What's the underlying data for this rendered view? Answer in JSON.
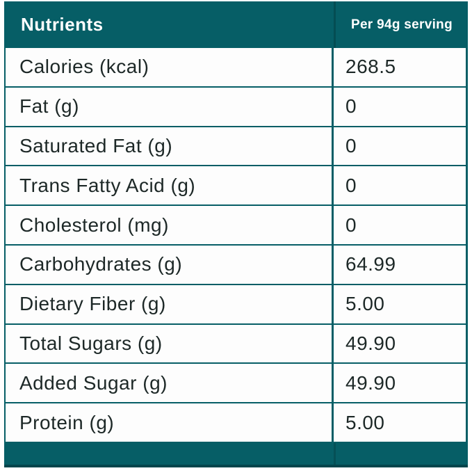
{
  "colors": {
    "teal": "#065E66",
    "teal_dark": "#04454C",
    "text": "#1D2827",
    "header_text": "#FFFFFF"
  },
  "header": {
    "title": "Nutrients",
    "serving": "Per 94g serving"
  },
  "table": {
    "rows": [
      {
        "label": "Calories (kcal)",
        "value": "268.5"
      },
      {
        "label": "Fat (g)",
        "value": "0"
      },
      {
        "label": "Saturated Fat (g)",
        "value": "0"
      },
      {
        "label": "Trans Fatty Acid (g)",
        "value": "0"
      },
      {
        "label": "Cholesterol (mg)",
        "value": "0"
      },
      {
        "label": "Carbohydrates (g)",
        "value": "64.99"
      },
      {
        "label": "Dietary Fiber (g)",
        "value": "5.00"
      },
      {
        "label": "Total Sugars (g)",
        "value": "49.90"
      },
      {
        "label": "Added Sugar (g)",
        "value": "49.90"
      },
      {
        "label": "Protein (g)",
        "value": "5.00"
      }
    ]
  }
}
